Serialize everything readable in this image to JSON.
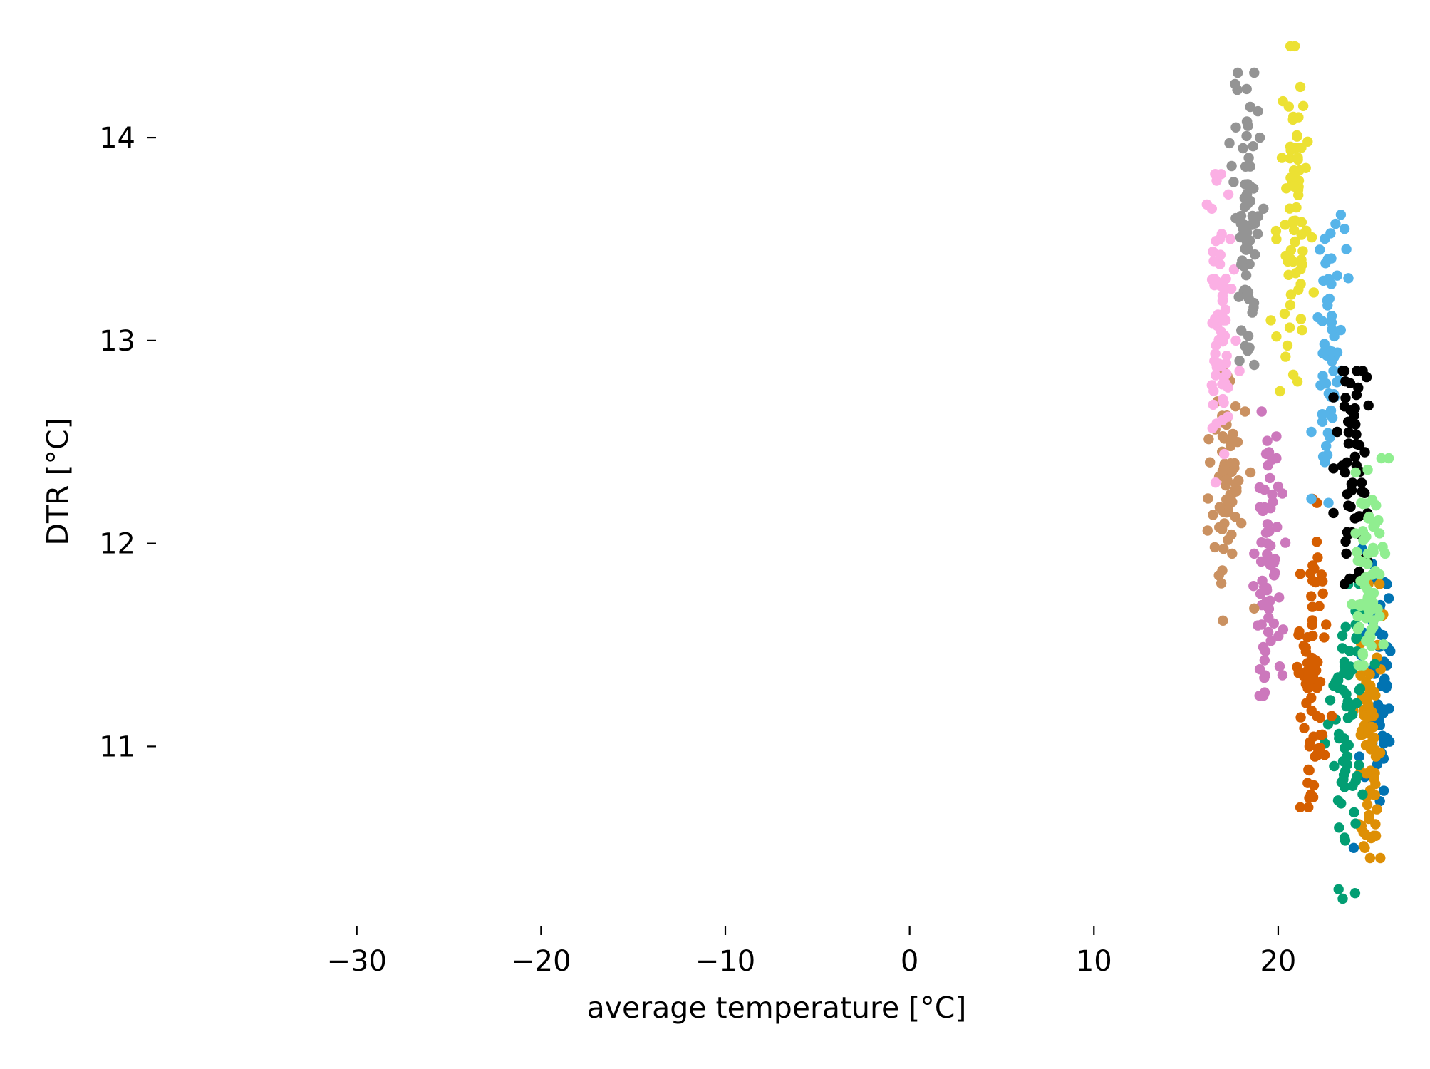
{
  "chart_data": {
    "type": "scatter",
    "title": "",
    "xlabel": "average temperature [°C]",
    "ylabel": "DTR [°C]",
    "xlim": [
      -36.6,
      27.0
    ],
    "ylim": [
      10.12,
      14.52
    ],
    "xticks": [
      -30,
      -20,
      -10,
      0,
      10,
      20
    ],
    "xtick_labels": [
      "−30",
      "−20",
      "−10",
      "0",
      "10",
      "20"
    ],
    "yticks": [
      11,
      12,
      13,
      14
    ],
    "ytick_labels": [
      "11",
      "12",
      "13",
      "14"
    ],
    "grid": false,
    "legend": "none",
    "series": [
      {
        "color": "#0173b2",
        "center": [
          25.4,
          11.35
        ],
        "spread": [
          0.35,
          0.32
        ],
        "y_range": [
          10.5,
          12.1
        ],
        "count": 60,
        "points": [
          [
            25.9,
            11.8
          ],
          [
            26.0,
            11.73
          ],
          [
            25.9,
            11.4
          ],
          [
            25.9,
            11.3
          ],
          [
            25.9,
            11.04
          ],
          [
            25.6,
            11.55
          ],
          [
            25.1,
            11.9
          ],
          [
            24.5,
            11.45
          ],
          [
            24.4,
            10.95
          ],
          [
            24.7,
            10.85
          ],
          [
            24.1,
            10.5
          ]
        ]
      },
      {
        "color": "#de8f05",
        "center": [
          24.9,
          11.05
        ],
        "spread": [
          0.35,
          0.35
        ],
        "y_range": [
          10.45,
          11.8
        ],
        "count": 75,
        "points": [
          [
            25.5,
            11.8
          ],
          [
            25.7,
            11.65
          ],
          [
            25.4,
            11.5
          ],
          [
            25.3,
            10.98
          ],
          [
            25.3,
            10.95
          ],
          [
            25.0,
            10.88
          ],
          [
            24.8,
            10.75
          ],
          [
            24.7,
            10.5
          ],
          [
            24.5,
            10.6
          ],
          [
            25.0,
            11.3
          ]
        ]
      },
      {
        "color": "#029e73",
        "center": [
          23.8,
          11.15
        ],
        "spread": [
          0.45,
          0.33
        ],
        "y_range": [
          10.25,
          11.8
        ],
        "count": 70,
        "points": [
          [
            23.5,
            10.25
          ],
          [
            23.6,
            10.55
          ],
          [
            23.3,
            10.6
          ],
          [
            24.2,
            10.62
          ],
          [
            23.6,
            10.8
          ],
          [
            23.3,
            11.04
          ],
          [
            22.4,
            11.05
          ],
          [
            24.2,
            11.6
          ],
          [
            24.4,
            11.8
          ],
          [
            23.0,
            11.3
          ]
        ]
      },
      {
        "color": "#d55e00",
        "center": [
          21.9,
          11.35
        ],
        "spread": [
          0.35,
          0.38
        ],
        "y_range": [
          10.7,
          12.22
        ],
        "count": 75,
        "points": [
          [
            21.2,
            10.7
          ],
          [
            21.9,
            10.75
          ],
          [
            22.0,
            10.95
          ],
          [
            22.1,
            12.2
          ],
          [
            21.2,
            11.85
          ],
          [
            21.1,
            11.55
          ],
          [
            21.6,
            10.82
          ],
          [
            21.7,
            11.0
          ],
          [
            22.6,
            11.6
          ],
          [
            22.9,
            11.15
          ]
        ]
      },
      {
        "color": "#cc78bc",
        "center": [
          19.5,
          11.9
        ],
        "spread": [
          0.35,
          0.32
        ],
        "y_range": [
          11.25,
          12.65
        ],
        "count": 70,
        "points": [
          [
            19.1,
            12.65
          ],
          [
            19.5,
            12.45
          ],
          [
            19.9,
            12.42
          ],
          [
            18.7,
            11.95
          ],
          [
            19.0,
            11.38
          ],
          [
            19.3,
            11.35
          ],
          [
            19.2,
            11.25
          ],
          [
            19.1,
            11.6
          ],
          [
            19.6,
            11.52
          ],
          [
            20.0,
            12.28
          ]
        ]
      },
      {
        "color": "#ca9161",
        "center": [
          17.2,
          12.3
        ],
        "spread": [
          0.4,
          0.28
        ],
        "y_range": [
          11.62,
          12.85
        ],
        "count": 75,
        "points": [
          [
            16.8,
            12.85
          ],
          [
            17.0,
            11.62
          ],
          [
            17.5,
            11.95
          ],
          [
            18.7,
            11.68
          ],
          [
            18.0,
            12.1
          ],
          [
            16.3,
            12.4
          ],
          [
            18.5,
            12.35
          ],
          [
            18.2,
            12.65
          ],
          [
            16.7,
            12.7
          ],
          [
            17.8,
            12.5
          ]
        ]
      },
      {
        "color": "#fbafe4",
        "center": [
          16.9,
          13.15
        ],
        "spread": [
          0.3,
          0.33
        ],
        "y_range": [
          12.3,
          13.82
        ],
        "count": 70,
        "points": [
          [
            16.6,
            13.82
          ],
          [
            16.4,
            13.65
          ],
          [
            17.3,
            13.72
          ],
          [
            17.4,
            13.5
          ],
          [
            17.0,
            13.2
          ],
          [
            17.7,
            13.0
          ],
          [
            16.4,
            12.78
          ],
          [
            16.6,
            12.3
          ],
          [
            17.9,
            12.85
          ],
          [
            17.6,
            13.35
          ]
        ]
      },
      {
        "color": "#949494",
        "center": [
          18.3,
          13.6
        ],
        "spread": [
          0.35,
          0.35
        ],
        "y_range": [
          12.88,
          14.32
        ],
        "count": 75,
        "points": [
          [
            18.7,
            14.32
          ],
          [
            18.9,
            14.13
          ],
          [
            17.7,
            14.05
          ],
          [
            18.2,
            13.25
          ],
          [
            18.0,
            13.05
          ],
          [
            18.7,
            12.88
          ],
          [
            19.2,
            13.65
          ],
          [
            17.9,
            12.9
          ],
          [
            19.0,
            14.0
          ],
          [
            18.4,
            13.9
          ]
        ]
      },
      {
        "color": "#ece133",
        "center": [
          20.9,
          13.55
        ],
        "spread": [
          0.35,
          0.35
        ],
        "y_range": [
          12.7,
          14.45
        ],
        "count": 75,
        "points": [
          [
            20.9,
            14.45
          ],
          [
            21.2,
            14.25
          ],
          [
            21.1,
            14.1
          ],
          [
            21.0,
            13.95
          ],
          [
            21.6,
            13.98
          ],
          [
            21.5,
            13.85
          ],
          [
            20.2,
            13.9
          ],
          [
            19.9,
            13.5
          ],
          [
            19.9,
            13.02
          ],
          [
            20.1,
            12.75
          ],
          [
            20.4,
            12.92
          ],
          [
            19.6,
            13.1
          ]
        ]
      },
      {
        "color": "#56b4e9",
        "center": [
          22.8,
          13.0
        ],
        "spread": [
          0.35,
          0.3
        ],
        "y_range": [
          12.2,
          13.62
        ],
        "count": 60,
        "points": [
          [
            23.4,
            13.62
          ],
          [
            23.6,
            13.55
          ],
          [
            23.7,
            13.45
          ],
          [
            23.2,
            13.32
          ],
          [
            23.0,
            12.85
          ],
          [
            22.3,
            12.78
          ],
          [
            22.4,
            12.6
          ],
          [
            21.8,
            12.55
          ],
          [
            22.6,
            12.48
          ],
          [
            21.8,
            12.22
          ]
        ]
      },
      {
        "color": "#000000",
        "center": [
          24.1,
          12.35
        ],
        "spread": [
          0.35,
          0.28
        ],
        "y_range": [
          11.8,
          12.85
        ],
        "count": 60,
        "points": [
          [
            23.5,
            12.85
          ],
          [
            23.0,
            12.72
          ],
          [
            24.8,
            12.82
          ],
          [
            24.9,
            12.68
          ],
          [
            23.2,
            12.55
          ],
          [
            23.0,
            12.37
          ],
          [
            23.0,
            12.15
          ],
          [
            23.8,
            12.6
          ],
          [
            23.7,
            11.95
          ],
          [
            23.6,
            11.8
          ],
          [
            24.7,
            12.45
          ]
        ]
      },
      {
        "color": "#90ee90",
        "center": [
          24.9,
          11.8
        ],
        "spread": [
          0.35,
          0.25
        ],
        "y_range": [
          11.4,
          12.45
        ],
        "count": 70,
        "points": [
          [
            25.6,
            12.42
          ],
          [
            26.0,
            12.42
          ],
          [
            24.2,
            12.35
          ],
          [
            24.5,
            12.2
          ],
          [
            25.5,
            12.05
          ],
          [
            24.2,
            12.05
          ],
          [
            25.8,
            11.95
          ],
          [
            24.0,
            11.7
          ],
          [
            24.6,
            11.45
          ]
        ]
      }
    ]
  }
}
